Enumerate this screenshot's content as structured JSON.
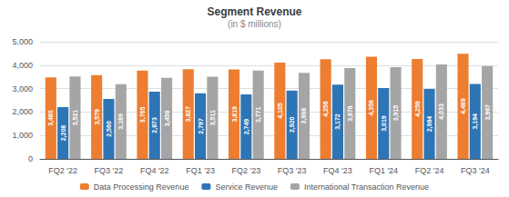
{
  "chart_data": {
    "type": "bar",
    "title": "Segment Revenue",
    "subtitle": "(in $ millions)",
    "categories": [
      "FQ2 '22",
      "FQ3 '22",
      "FQ4 '22",
      "FQ1 '23",
      "FQ2 '23",
      "FQ3 '23",
      "FQ4 '23",
      "FQ1 '24",
      "FQ2 '24",
      "FQ3 '24"
    ],
    "series": [
      {
        "name": "Data Processing Revenue",
        "color": "#ed7d31",
        "values": [
          3480,
          3579,
          3765,
          3827,
          3819,
          4105,
          4256,
          4356,
          4259,
          4489
        ],
        "value_labels": [
          "3,480",
          "3,579",
          "3,765",
          "3,827",
          "3,819",
          "4,105",
          "4,256",
          "4,356",
          "4,259",
          "4,489"
        ]
      },
      {
        "name": "Service Revenue",
        "color": "#2e75b6",
        "values": [
          2208,
          2560,
          2873,
          2797,
          2749,
          2920,
          3172,
          3019,
          2984,
          3194
        ],
        "value_labels": [
          "2,208",
          "2,560",
          "2,873",
          "2,797",
          "2,749",
          "2,920",
          "3,172",
          "3,019",
          "2,984",
          "3,194"
        ]
      },
      {
        "name": "International Transaction Revenue",
        "color": "#a5a5a5",
        "values": [
          3521,
          3189,
          3458,
          3511,
          3771,
          3668,
          3876,
          3915,
          4033,
          3967
        ],
        "value_labels": [
          "3,521",
          "3,189",
          "3,458",
          "3,511",
          "3,771",
          "3,668",
          "3,876",
          "3,915",
          "4,033",
          "3,967"
        ]
      }
    ],
    "ylim": [
      0,
      5000
    ],
    "yticks": [
      0,
      {
        "value": 1000,
        "label": "1,000"
      },
      {
        "value": 2000,
        "label": "2,000"
      },
      {
        "value": 3000,
        "label": "3,000"
      },
      {
        "value": 4000,
        "label": "4,000"
      },
      {
        "value": 5000,
        "label": "5,000"
      }
    ],
    "grid": true,
    "legend": "bottom",
    "data_labels": true
  }
}
